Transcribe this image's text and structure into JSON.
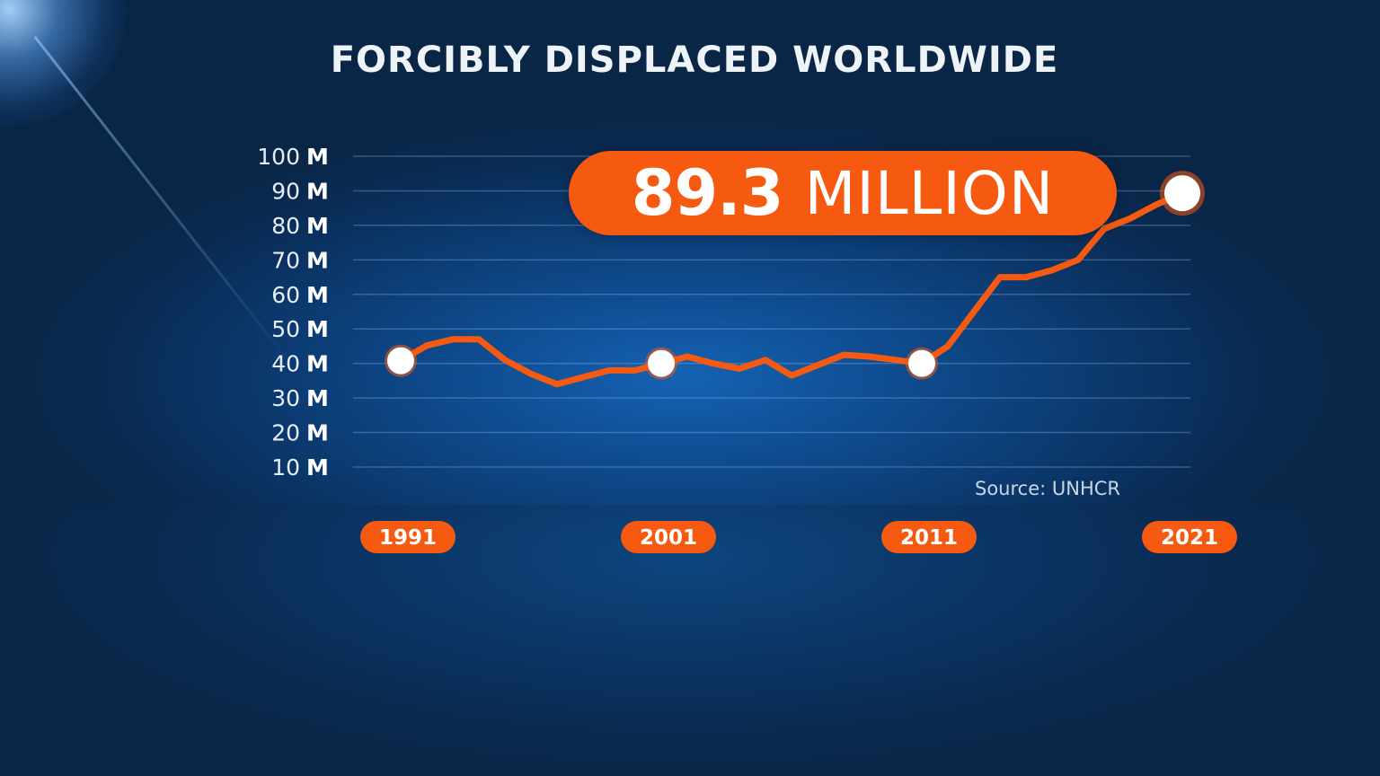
{
  "chart_data": {
    "type": "line",
    "title": "FORCIBLY DISPLACED WORLDWIDE",
    "xlabel": "",
    "ylabel": "",
    "x_range": [
      1991,
      2021
    ],
    "ylim": [
      10,
      100
    ],
    "y_ticks": [
      {
        "value": 100,
        "number": "100",
        "unit": "M"
      },
      {
        "value": 90,
        "number": "90",
        "unit": "M"
      },
      {
        "value": 80,
        "number": "80",
        "unit": "M"
      },
      {
        "value": 70,
        "number": "70",
        "unit": "M"
      },
      {
        "value": 60,
        "number": "60",
        "unit": "M"
      },
      {
        "value": 50,
        "number": "50",
        "unit": "M"
      },
      {
        "value": 40,
        "number": "40",
        "unit": "M"
      },
      {
        "value": 30,
        "number": "30",
        "unit": "M"
      },
      {
        "value": 20,
        "number": "20",
        "unit": "M"
      },
      {
        "value": 10,
        "number": "10",
        "unit": "M"
      }
    ],
    "x_ticks": [
      {
        "value": 1991,
        "label": "1991"
      },
      {
        "value": 2001,
        "label": "2001"
      },
      {
        "value": 2011,
        "label": "2011"
      },
      {
        "value": 2021,
        "label": "2021"
      }
    ],
    "grid": true,
    "legend": "none",
    "series": [
      {
        "color": "#f55a10",
        "points": [
          {
            "x": 1991,
            "y": 40.8
          },
          {
            "x": 1992,
            "y": 45.2
          },
          {
            "x": 1993,
            "y": 47.0
          },
          {
            "x": 1994,
            "y": 47.0
          },
          {
            "x": 1995,
            "y": 41.0
          },
          {
            "x": 1996,
            "y": 37.0
          },
          {
            "x": 1997,
            "y": 34.0
          },
          {
            "x": 1998,
            "y": 36.0
          },
          {
            "x": 1999,
            "y": 38.0
          },
          {
            "x": 2000,
            "y": 38.0
          },
          {
            "x": 2001,
            "y": 40.0
          },
          {
            "x": 2002,
            "y": 42.0
          },
          {
            "x": 2003,
            "y": 40.0
          },
          {
            "x": 2004,
            "y": 38.5
          },
          {
            "x": 2005,
            "y": 41.0
          },
          {
            "x": 2006,
            "y": 36.5
          },
          {
            "x": 2007,
            "y": 39.5
          },
          {
            "x": 2008,
            "y": 42.5
          },
          {
            "x": 2009,
            "y": 42.0
          },
          {
            "x": 2010,
            "y": 41.0
          },
          {
            "x": 2011,
            "y": 40.0
          },
          {
            "x": 2012,
            "y": 45.0
          },
          {
            "x": 2013,
            "y": 55.0
          },
          {
            "x": 2014,
            "y": 65.0
          },
          {
            "x": 2015,
            "y": 65.0
          },
          {
            "x": 2016,
            "y": 67.0
          },
          {
            "x": 2017,
            "y": 70.0
          },
          {
            "x": 2018,
            "y": 79.0
          },
          {
            "x": 2019,
            "y": 82.0
          },
          {
            "x": 2020,
            "y": 86.0
          },
          {
            "x": 2021,
            "y": 89.3
          }
        ],
        "highlighted_x": [
          1991,
          2001,
          2011,
          2021
        ]
      }
    ],
    "callout": {
      "value": "89.3",
      "unit": "MILLION"
    },
    "source": "Source: UNHCR"
  }
}
